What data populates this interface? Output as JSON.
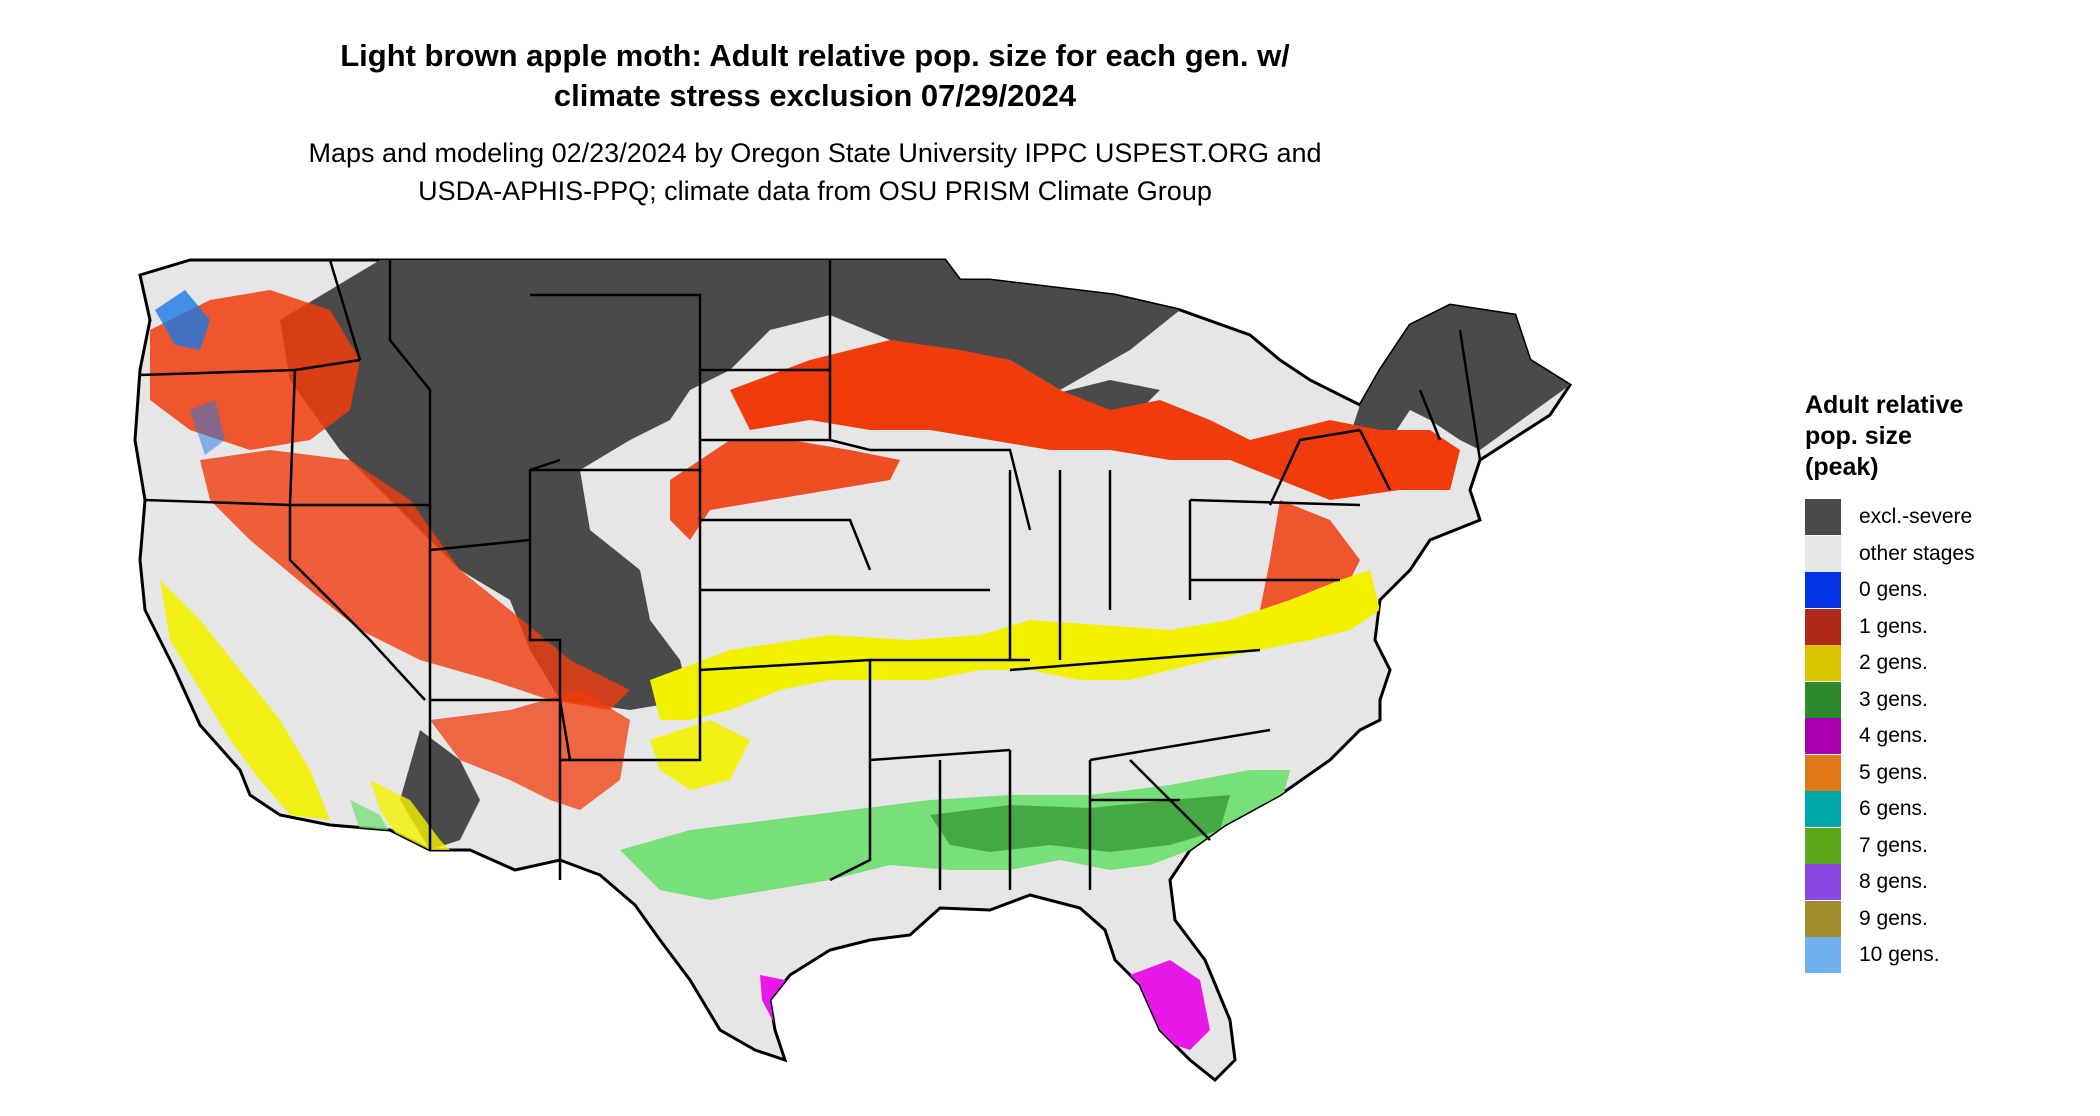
{
  "title_line1": "Light brown apple moth: Adult relative pop. size for each gen. w/",
  "title_line2": "climate stress exclusion 07/29/2024",
  "subtitle_line1": "Maps and modeling 02/23/2024 by Oregon State University IPPC USPEST.ORG and",
  "subtitle_line2": "USDA-APHIS-PPQ; climate data from OSU PRISM Climate Group",
  "legend": {
    "title_line1": "Adult relative",
    "title_line2": "pop. size",
    "title_line3": "(peak)",
    "items": [
      {
        "label": "excl.-severe",
        "color": "#4a4a4a"
      },
      {
        "label": "other stages",
        "color": "#e6e6e6"
      },
      {
        "label": "0 gens.",
        "color": "#0033e6"
      },
      {
        "label": "1 gens.",
        "color": "#b02818"
      },
      {
        "label": "2 gens.",
        "color": "#d9c400"
      },
      {
        "label": "3 gens.",
        "color": "#2a8a2a"
      },
      {
        "label": "4 gens.",
        "color": "#a800b0"
      },
      {
        "label": "5 gens.",
        "color": "#e07818"
      },
      {
        "label": "6 gens.",
        "color": "#00a8a8"
      },
      {
        "label": "7 gens.",
        "color": "#5ca818"
      },
      {
        "label": "8 gens.",
        "color": "#8a48e0"
      },
      {
        "label": "9 gens.",
        "color": "#a08c28"
      },
      {
        "label": "10 gens.",
        "color": "#70b0f0"
      }
    ]
  },
  "map_colors": {
    "background": "#e6e6e6",
    "severe": "#4a4a4a",
    "one_gen": "#f03c0c",
    "two_gen": "#f2f200",
    "three_gen": "#78e078",
    "three_gen_dark": "#2a8a2a",
    "four_gen": "#e818e8",
    "blue": "#1a78e6",
    "border": "#000000"
  }
}
